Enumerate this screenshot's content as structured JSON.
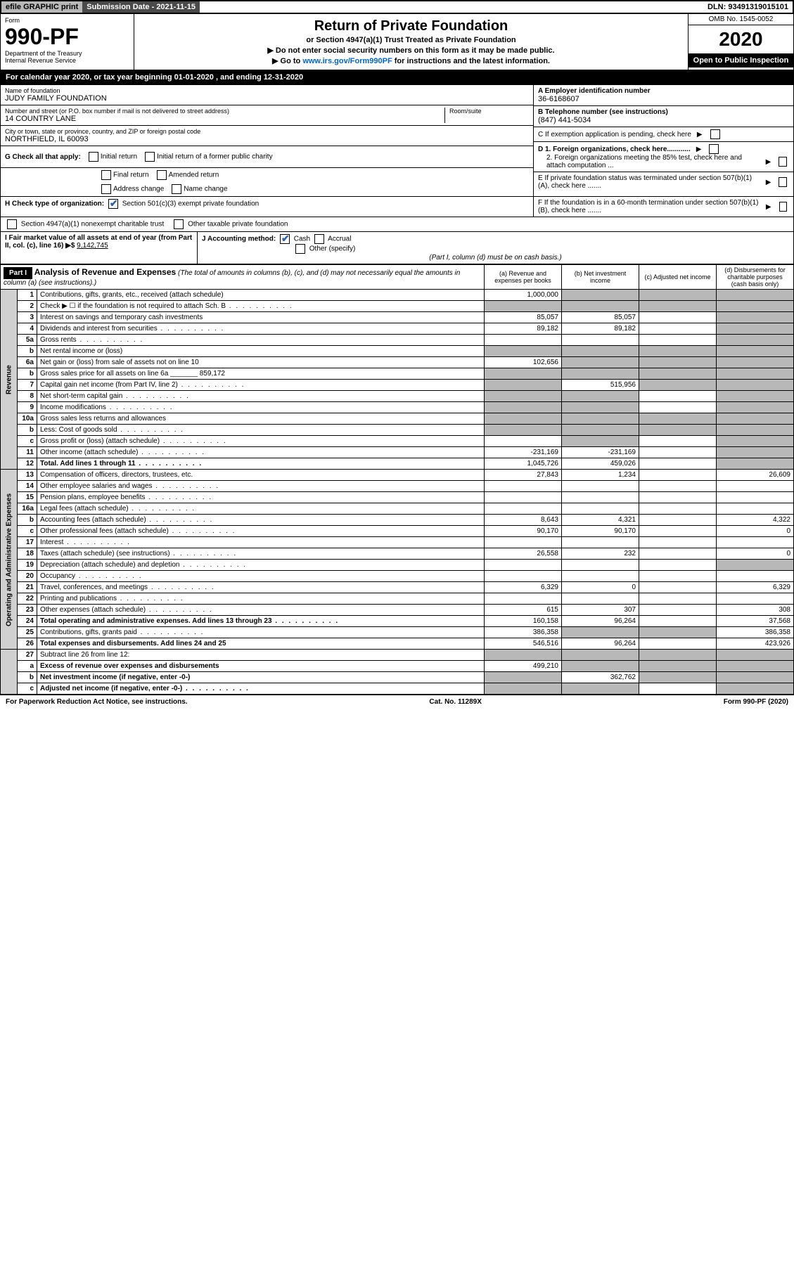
{
  "topbar": {
    "efile": "efile GRAPHIC print",
    "submission": "Submission Date - 2021-11-15",
    "dln": "DLN: 93491319015101"
  },
  "header": {
    "form_label": "Form",
    "form_num": "990-PF",
    "dept1": "Department of the Treasury",
    "dept2": "Internal Revenue Service",
    "title": "Return of Private Foundation",
    "subtitle": "or Section 4947(a)(1) Trust Treated as Private Foundation",
    "note1": "▶ Do not enter social security numbers on this form as it may be made public.",
    "note2_pre": "▶ Go to ",
    "note2_link": "www.irs.gov/Form990PF",
    "note2_post": " for instructions and the latest information.",
    "omb": "OMB No. 1545-0052",
    "year": "2020",
    "open_public": "Open to Public Inspection"
  },
  "calendar": "For calendar year 2020, or tax year beginning 01-01-2020 , and ending 12-31-2020",
  "foundation": {
    "name_label": "Name of foundation",
    "name": "JUDY FAMILY FOUNDATION",
    "addr_label": "Number and street (or P.O. box number if mail is not delivered to street address)",
    "addr": "14 COUNTRY LANE",
    "room_label": "Room/suite",
    "city_label": "City or town, state or province, country, and ZIP or foreign postal code",
    "city": "NORTHFIELD, IL  60093",
    "ein_label": "A Employer identification number",
    "ein": "36-6168607",
    "phone_label": "B Telephone number (see instructions)",
    "phone": "(847) 441-5034",
    "c_label": "C If exemption application is pending, check here",
    "d1": "D 1. Foreign organizations, check here............",
    "d2": "2. Foreign organizations meeting the 85% test, check here and attach computation ...",
    "e_label": "E  If private foundation status was terminated under section 507(b)(1)(A), check here .......",
    "f_label": "F  If the foundation is in a 60-month termination under section 507(b)(1)(B), check here .......",
    "g_label": "G Check all that apply:",
    "g_opts": [
      "Initial return",
      "Initial return of a former public charity",
      "Final return",
      "Amended return",
      "Address change",
      "Name change"
    ],
    "h_label": "H Check type of organization:",
    "h1": "Section 501(c)(3) exempt private foundation",
    "h2": "Section 4947(a)(1) nonexempt charitable trust",
    "h3": "Other taxable private foundation",
    "i_label": "I Fair market value of all assets at end of year (from Part II, col. (c), line 16) ▶$",
    "i_val": "9,142,745",
    "j_label": "J Accounting method:",
    "j_cash": "Cash",
    "j_accrual": "Accrual",
    "j_other": "Other (specify)",
    "j_note": "(Part I, column (d) must be on cash basis.)"
  },
  "part1": {
    "header": "Part I",
    "title": "Analysis of Revenue and Expenses",
    "sub": " (The total of amounts in columns (b), (c), and (d) may not necessarily equal the amounts in column (a) (see instructions).)",
    "col_a": "(a) Revenue and expenses per books",
    "col_b": "(b) Net investment income",
    "col_c": "(c) Adjusted net income",
    "col_d": "(d) Disbursements for charitable purposes (cash basis only)"
  },
  "sections": {
    "revenue": "Revenue",
    "expenses": "Operating and Administrative Expenses"
  },
  "rows": [
    {
      "n": "1",
      "d": "Contributions, gifts, grants, etc., received (attach schedule)",
      "a": "1,000,000",
      "b_shade": true,
      "c_shade": true,
      "d_shade": true
    },
    {
      "n": "2",
      "d": "Check ▶ ☐ if the foundation is not required to attach Sch. B",
      "dots": true,
      "a_shade": true,
      "b_shade": true,
      "c_shade": true,
      "d_shade": true
    },
    {
      "n": "3",
      "d": "Interest on savings and temporary cash investments",
      "a": "85,057",
      "b": "85,057",
      "d_shade": true
    },
    {
      "n": "4",
      "d": "Dividends and interest from securities",
      "dots": true,
      "a": "89,182",
      "b": "89,182",
      "d_shade": true
    },
    {
      "n": "5a",
      "d": "Gross rents",
      "dots": true,
      "d_shade": true
    },
    {
      "n": "b",
      "d": "Net rental income or (loss)",
      "a_shade": true,
      "b_shade": true,
      "c_shade": true,
      "d_shade": true
    },
    {
      "n": "6a",
      "d": "Net gain or (loss) from sale of assets not on line 10",
      "a": "102,656",
      "b_shade": true,
      "c_shade": true,
      "d_shade": true
    },
    {
      "n": "b",
      "d": "Gross sales price for all assets on line 6a _______ 859,172",
      "a_shade": true,
      "b_shade": true,
      "c_shade": true,
      "d_shade": true
    },
    {
      "n": "7",
      "d": "Capital gain net income (from Part IV, line 2)",
      "dots": true,
      "a_shade": true,
      "b": "515,956",
      "c_shade": true,
      "d_shade": true
    },
    {
      "n": "8",
      "d": "Net short-term capital gain",
      "dots": true,
      "a_shade": true,
      "b_shade": true,
      "d_shade": true
    },
    {
      "n": "9",
      "d": "Income modifications",
      "dots": true,
      "a_shade": true,
      "b_shade": true,
      "d_shade": true
    },
    {
      "n": "10a",
      "d": "Gross sales less returns and allowances",
      "a_shade": true,
      "b_shade": true,
      "c_shade": true,
      "d_shade": true
    },
    {
      "n": "b",
      "d": "Less: Cost of goods sold",
      "dots": true,
      "a_shade": true,
      "b_shade": true,
      "c_shade": true,
      "d_shade": true
    },
    {
      "n": "c",
      "d": "Gross profit or (loss) (attach schedule)",
      "dots": true,
      "b_shade": true,
      "d_shade": true
    },
    {
      "n": "11",
      "d": "Other income (attach schedule)",
      "dots": true,
      "a": "-231,169",
      "b": "-231,169",
      "d_shade": true
    },
    {
      "n": "12",
      "d": "Total. Add lines 1 through 11",
      "dots": true,
      "bold": true,
      "a": "1,045,726",
      "b": "459,026",
      "d_shade": true
    }
  ],
  "exp_rows": [
    {
      "n": "13",
      "d": "Compensation of officers, directors, trustees, etc.",
      "a": "27,843",
      "b": "1,234",
      "dd": "26,609"
    },
    {
      "n": "14",
      "d": "Other employee salaries and wages",
      "dots": true
    },
    {
      "n": "15",
      "d": "Pension plans, employee benefits",
      "dots": true
    },
    {
      "n": "16a",
      "d": "Legal fees (attach schedule)",
      "dots": true
    },
    {
      "n": "b",
      "d": "Accounting fees (attach schedule)",
      "dots": true,
      "a": "8,643",
      "b": "4,321",
      "dd": "4,322"
    },
    {
      "n": "c",
      "d": "Other professional fees (attach schedule)",
      "dots": true,
      "a": "90,170",
      "b": "90,170",
      "dd": "0"
    },
    {
      "n": "17",
      "d": "Interest",
      "dots": true
    },
    {
      "n": "18",
      "d": "Taxes (attach schedule) (see instructions)",
      "dots": true,
      "a": "26,558",
      "b": "232",
      "dd": "0"
    },
    {
      "n": "19",
      "d": "Depreciation (attach schedule) and depletion",
      "dots": true,
      "d_shade": true
    },
    {
      "n": "20",
      "d": "Occupancy",
      "dots": true
    },
    {
      "n": "21",
      "d": "Travel, conferences, and meetings",
      "dots": true,
      "a": "6,329",
      "b": "0",
      "dd": "6,329"
    },
    {
      "n": "22",
      "d": "Printing and publications",
      "dots": true
    },
    {
      "n": "23",
      "d": "Other expenses (attach schedule)",
      "dots": true,
      "a": "615",
      "b": "307",
      "dd": "308"
    },
    {
      "n": "24",
      "d": "Total operating and administrative expenses. Add lines 13 through 23",
      "dots": true,
      "bold": true,
      "a": "160,158",
      "b": "96,264",
      "dd": "37,568"
    },
    {
      "n": "25",
      "d": "Contributions, gifts, grants paid",
      "dots": true,
      "a": "386,358",
      "b_shade": true,
      "c_shade": true,
      "dd": "386,358"
    },
    {
      "n": "26",
      "d": "Total expenses and disbursements. Add lines 24 and 25",
      "bold": true,
      "a": "546,516",
      "b": "96,264",
      "dd": "423,926"
    }
  ],
  "final_rows": [
    {
      "n": "27",
      "d": "Subtract line 26 from line 12:",
      "a_shade": true,
      "b_shade": true,
      "c_shade": true,
      "d_shade": true
    },
    {
      "n": "a",
      "d": "Excess of revenue over expenses and disbursements",
      "bold": true,
      "a": "499,210",
      "b_shade": true,
      "c_shade": true,
      "d_shade": true
    },
    {
      "n": "b",
      "d": "Net investment income (if negative, enter -0-)",
      "bold": true,
      "a_shade": true,
      "b": "362,762",
      "c_shade": true,
      "d_shade": true
    },
    {
      "n": "c",
      "d": "Adjusted net income (if negative, enter -0-)",
      "dots": true,
      "bold": true,
      "a_shade": true,
      "b_shade": true,
      "d_shade": true
    }
  ],
  "footer": {
    "left": "For Paperwork Reduction Act Notice, see instructions.",
    "center": "Cat. No. 11289X",
    "right": "Form 990-PF (2020)"
  }
}
